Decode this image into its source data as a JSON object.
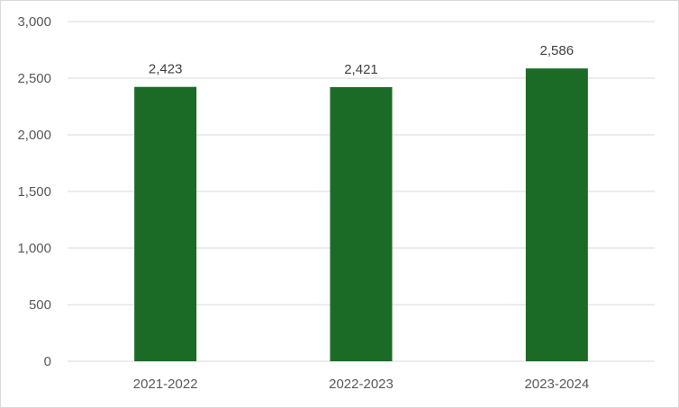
{
  "chart_data": {
    "type": "bar",
    "title": "",
    "xlabel": "",
    "ylabel": "",
    "categories": [
      "2021-2022",
      "2022-2023",
      "2023-2024"
    ],
    "values": [
      2423,
      2421,
      2586
    ],
    "data_labels": [
      "2,423",
      "2,421",
      "2,586"
    ],
    "ylim": [
      0,
      3000
    ],
    "yticks": [
      0,
      500,
      1000,
      1500,
      2000,
      2500,
      3000
    ],
    "ytick_labels": [
      "0",
      "500",
      "1,000",
      "1,500",
      "2,000",
      "2,500",
      "3,000"
    ],
    "grid": "horizontal",
    "legend": "none",
    "bar_color": "#1b6b27",
    "gridline_color": "#d9d9d9"
  }
}
